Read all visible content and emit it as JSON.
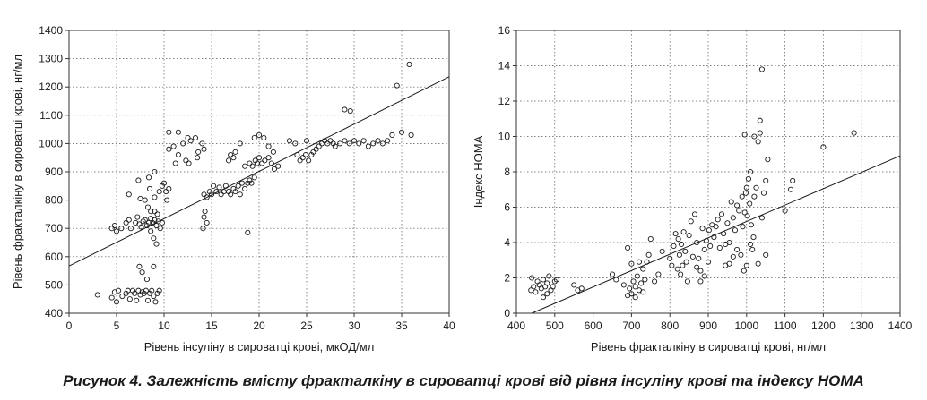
{
  "caption": "Рисунок 4. Залежність вмісту фракталкіну в сироватці крові від рівня інсуліну крові та індексу HOMA",
  "chart_data": [
    {
      "type": "scatter",
      "xlabel": "Рівень інсуліну в сироватці крові, мкОД/мл",
      "ylabel": "Рівень фракталкіну в сироватці крові, нг/мл",
      "xlim": [
        0,
        40
      ],
      "ylim": [
        400,
        1400
      ],
      "xticks": [
        0,
        5,
        10,
        15,
        20,
        25,
        30,
        35,
        40
      ],
      "yticks": [
        400,
        500,
        600,
        700,
        800,
        900,
        1000,
        1100,
        1200,
        1300,
        1400
      ],
      "grid": true,
      "trendline": {
        "x": [
          0,
          40
        ],
        "y": [
          567,
          1236
        ]
      },
      "points": [
        [
          3,
          465
        ],
        [
          4.5,
          455
        ],
        [
          4.8,
          475
        ],
        [
          5,
          440
        ],
        [
          5.2,
          480
        ],
        [
          5.6,
          460
        ],
        [
          6,
          470
        ],
        [
          6.2,
          480
        ],
        [
          6.4,
          450
        ],
        [
          6.7,
          480
        ],
        [
          6.9,
          470
        ],
        [
          7.1,
          445
        ],
        [
          7.3,
          480
        ],
        [
          7.5,
          465
        ],
        [
          7.7,
          475
        ],
        [
          7.9,
          470
        ],
        [
          8.1,
          480
        ],
        [
          8.3,
          445
        ],
        [
          8.5,
          470
        ],
        [
          8.7,
          480
        ],
        [
          8.9,
          460
        ],
        [
          9.1,
          440
        ],
        [
          9.3,
          470
        ],
        [
          9.5,
          480
        ],
        [
          7.4,
          565
        ],
        [
          7.7,
          545
        ],
        [
          8.2,
          520
        ],
        [
          8.9,
          565
        ],
        [
          4.5,
          700
        ],
        [
          4.8,
          710
        ],
        [
          5.5,
          700
        ],
        [
          5,
          690
        ],
        [
          6,
          720
        ],
        [
          6.3,
          730
        ],
        [
          6.5,
          700
        ],
        [
          7,
          720
        ],
        [
          7.2,
          740
        ],
        [
          7.4,
          715
        ],
        [
          7.6,
          705
        ],
        [
          7.8,
          725
        ],
        [
          8,
          730
        ],
        [
          8.2,
          710
        ],
        [
          8.4,
          720
        ],
        [
          8.6,
          735
        ],
        [
          8.8,
          720
        ],
        [
          9,
          730
        ],
        [
          9.2,
          710
        ],
        [
          9.4,
          725
        ],
        [
          9.6,
          700
        ],
        [
          9.8,
          720
        ],
        [
          8.6,
          690
        ],
        [
          8.9,
          665
        ],
        [
          9.2,
          645
        ],
        [
          8.3,
          775
        ],
        [
          8.6,
          760
        ],
        [
          9,
          760
        ],
        [
          9.3,
          750
        ],
        [
          6.3,
          820
        ],
        [
          7.5,
          805
        ],
        [
          8,
          800
        ],
        [
          8.5,
          840
        ],
        [
          9,
          810
        ],
        [
          9.5,
          830
        ],
        [
          9.8,
          850
        ],
        [
          10,
          860
        ],
        [
          10.3,
          800
        ],
        [
          10.2,
          830
        ],
        [
          7.3,
          870
        ],
        [
          8.4,
          880
        ],
        [
          9,
          900
        ],
        [
          10.5,
          840
        ],
        [
          10.5,
          980
        ],
        [
          11,
          990
        ],
        [
          11.5,
          960
        ],
        [
          12,
          1000
        ],
        [
          12.3,
          940
        ],
        [
          12.8,
          1010
        ],
        [
          13.3,
          1020
        ],
        [
          13.6,
          970
        ],
        [
          14,
          1000
        ],
        [
          10.5,
          1040
        ],
        [
          11.5,
          1040
        ],
        [
          12.5,
          1020
        ],
        [
          11.2,
          930
        ],
        [
          12.6,
          930
        ],
        [
          13.5,
          950
        ],
        [
          14.2,
          980
        ],
        [
          14.2,
          820
        ],
        [
          14.5,
          810
        ],
        [
          14.8,
          830
        ],
        [
          15,
          820
        ],
        [
          15.2,
          850
        ],
        [
          15.5,
          830
        ],
        [
          15.8,
          845
        ],
        [
          16,
          820
        ],
        [
          16.3,
          830
        ],
        [
          16.5,
          850
        ],
        [
          16.8,
          830
        ],
        [
          17,
          820
        ],
        [
          17.3,
          840
        ],
        [
          17.5,
          830
        ],
        [
          17.8,
          850
        ],
        [
          18,
          820
        ],
        [
          18.2,
          860
        ],
        [
          18.5,
          840
        ],
        [
          18.8,
          860
        ],
        [
          19,
          870
        ],
        [
          19.2,
          860
        ],
        [
          19.5,
          880
        ],
        [
          14.2,
          740
        ],
        [
          14.5,
          720
        ],
        [
          14.1,
          700
        ],
        [
          14.3,
          760
        ],
        [
          16.8,
          940
        ],
        [
          17,
          960
        ],
        [
          17.3,
          950
        ],
        [
          17.5,
          970
        ],
        [
          18,
          1000
        ],
        [
          18.5,
          920
        ],
        [
          19,
          930
        ],
        [
          19.3,
          920
        ],
        [
          19.6,
          940
        ],
        [
          19.8,
          930
        ],
        [
          20,
          950
        ],
        [
          20.3,
          930
        ],
        [
          20.6,
          940
        ],
        [
          21,
          950
        ],
        [
          21.3,
          930
        ],
        [
          21.6,
          910
        ],
        [
          22,
          920
        ],
        [
          19.5,
          1020
        ],
        [
          20,
          1030
        ],
        [
          20.5,
          1020
        ],
        [
          21,
          990
        ],
        [
          21.5,
          970
        ],
        [
          18.8,
          685
        ],
        [
          24,
          960
        ],
        [
          24.3,
          940
        ],
        [
          24.6,
          950
        ],
        [
          24.9,
          960
        ],
        [
          25.2,
          940
        ],
        [
          25.5,
          960
        ],
        [
          25.7,
          970
        ],
        [
          26,
          980
        ],
        [
          26.3,
          990
        ],
        [
          26.6,
          1000
        ],
        [
          26.9,
          1010
        ],
        [
          27.2,
          1000
        ],
        [
          27.5,
          1010
        ],
        [
          27.8,
          1000
        ],
        [
          28,
          990
        ],
        [
          28.5,
          1000
        ],
        [
          29,
          1010
        ],
        [
          29.5,
          1000
        ],
        [
          30,
          1010
        ],
        [
          30.5,
          1000
        ],
        [
          31,
          1010
        ],
        [
          31.5,
          990
        ],
        [
          32,
          1000
        ],
        [
          32.5,
          1010
        ],
        [
          33,
          1000
        ],
        [
          33.5,
          1010
        ],
        [
          34,
          1030
        ],
        [
          35,
          1040
        ],
        [
          36,
          1030
        ],
        [
          23.2,
          1010
        ],
        [
          23.8,
          1000
        ],
        [
          25,
          1010
        ],
        [
          29,
          1120
        ],
        [
          29.6,
          1115
        ],
        [
          34.5,
          1205
        ],
        [
          35.8,
          1280
        ]
      ]
    },
    {
      "type": "scatter",
      "xlabel": "Рівень фракталкіну в сироватці крові, нг/мл",
      "ylabel": "Індекс НОМА",
      "xlim": [
        400,
        1400
      ],
      "ylim": [
        0,
        16
      ],
      "xticks": [
        400,
        500,
        600,
        700,
        800,
        900,
        1000,
        1100,
        1200,
        1300,
        1400
      ],
      "yticks": [
        0,
        2,
        4,
        6,
        8,
        10,
        12,
        14,
        16
      ],
      "grid": true,
      "trendline": {
        "x": [
          440,
          1400
        ],
        "y": [
          0,
          8.9
        ]
      },
      "points": [
        [
          438,
          1.3
        ],
        [
          440,
          2
        ],
        [
          445,
          1.5
        ],
        [
          450,
          1.2
        ],
        [
          455,
          1.8
        ],
        [
          460,
          1.6
        ],
        [
          465,
          1.4
        ],
        [
          470,
          1.9
        ],
        [
          475,
          1.5
        ],
        [
          480,
          1.7
        ],
        [
          485,
          2.1
        ],
        [
          490,
          1.3
        ],
        [
          495,
          1.5
        ],
        [
          500,
          1.8
        ],
        [
          505,
          1.9
        ],
        [
          480,
          1.1
        ],
        [
          470,
          0.9
        ],
        [
          550,
          1.6
        ],
        [
          560,
          1.3
        ],
        [
          570,
          1.4
        ],
        [
          650,
          2.2
        ],
        [
          660,
          1.9
        ],
        [
          680,
          1.6
        ],
        [
          690,
          3.7
        ],
        [
          695,
          1.4
        ],
        [
          700,
          1.1
        ],
        [
          705,
          1.8
        ],
        [
          710,
          1.5
        ],
        [
          715,
          2.1
        ],
        [
          720,
          1.3
        ],
        [
          725,
          1.7
        ],
        [
          730,
          2.5
        ],
        [
          735,
          1.9
        ],
        [
          740,
          2.9
        ],
        [
          745,
          3.3
        ],
        [
          750,
          4.2
        ],
        [
          700,
          2.8
        ],
        [
          720,
          2.9
        ],
        [
          690,
          1
        ],
        [
          710,
          0.9
        ],
        [
          730,
          1.2
        ],
        [
          760,
          1.8
        ],
        [
          770,
          2.2
        ],
        [
          780,
          3.5
        ],
        [
          800,
          3.1
        ],
        [
          805,
          2.7
        ],
        [
          810,
          3.8
        ],
        [
          815,
          4.5
        ],
        [
          820,
          2.5
        ],
        [
          822,
          4.2
        ],
        [
          825,
          3.3
        ],
        [
          828,
          2.2
        ],
        [
          830,
          3.9
        ],
        [
          833,
          2.7
        ],
        [
          836,
          4.6
        ],
        [
          840,
          3.5
        ],
        [
          843,
          2.9
        ],
        [
          846,
          1.8
        ],
        [
          850,
          4.4
        ],
        [
          855,
          5.2
        ],
        [
          860,
          3.2
        ],
        [
          865,
          5.6
        ],
        [
          870,
          4
        ],
        [
          875,
          3.1
        ],
        [
          880,
          2.4
        ],
        [
          885,
          4.8
        ],
        [
          890,
          3.6
        ],
        [
          895,
          4.1
        ],
        [
          900,
          2.9
        ],
        [
          902,
          4.7
        ],
        [
          905,
          3.8
        ],
        [
          910,
          5
        ],
        [
          915,
          4.3
        ],
        [
          920,
          4.9
        ],
        [
          925,
          5.3
        ],
        [
          930,
          3.7
        ],
        [
          935,
          5.6
        ],
        [
          940,
          4.5
        ],
        [
          945,
          2.7
        ],
        [
          950,
          5.1
        ],
        [
          955,
          4
        ],
        [
          960,
          6.3
        ],
        [
          965,
          5.4
        ],
        [
          970,
          4.7
        ],
        [
          975,
          6.1
        ],
        [
          980,
          5.8
        ],
        [
          985,
          3.3
        ],
        [
          988,
          6.6
        ],
        [
          990,
          4.9
        ],
        [
          993,
          2.4
        ],
        [
          995,
          5.7
        ],
        [
          998,
          6.8
        ],
        [
          1000,
          7.1
        ],
        [
          1002,
          5.5
        ],
        [
          1005,
          7.6
        ],
        [
          1008,
          6.2
        ],
        [
          1010,
          8
        ],
        [
          1012,
          5
        ],
        [
          1015,
          3.6
        ],
        [
          1018,
          4.3
        ],
        [
          1020,
          6.6
        ],
        [
          1025,
          7.1
        ],
        [
          1030,
          9.7
        ],
        [
          1035,
          10.2
        ],
        [
          1040,
          5.4
        ],
        [
          1045,
          6.8
        ],
        [
          1050,
          7.5
        ],
        [
          1055,
          8.7
        ],
        [
          995,
          10.1
        ],
        [
          1020,
          10
        ],
        [
          1035,
          10.9
        ],
        [
          1040,
          13.8
        ],
        [
          1100,
          5.8
        ],
        [
          1115,
          7
        ],
        [
          1120,
          7.5
        ],
        [
          1200,
          9.4
        ],
        [
          1280,
          10.2
        ],
        [
          1000,
          2.7
        ],
        [
          1010,
          3.9
        ],
        [
          1030,
          2.8
        ],
        [
          1050,
          3.3
        ],
        [
          945,
          3.9
        ],
        [
          955,
          2.8
        ],
        [
          965,
          3.2
        ],
        [
          975,
          3.6
        ],
        [
          870,
          2.6
        ],
        [
          880,
          1.8
        ],
        [
          890,
          2.1
        ]
      ]
    }
  ]
}
